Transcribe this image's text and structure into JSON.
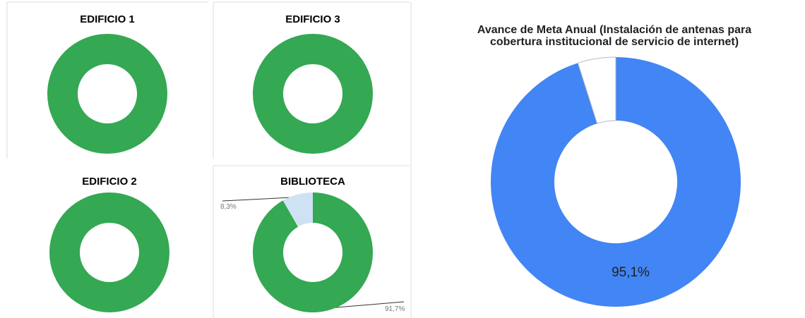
{
  "chart_data": [
    {
      "type": "donut",
      "title": "EDIFICIO 1",
      "values": [
        100
      ],
      "colors": [
        "#34a853"
      ]
    },
    {
      "type": "donut",
      "title": "EDIFICIO 3",
      "values": [
        100
      ],
      "colors": [
        "#34a853"
      ]
    },
    {
      "type": "donut",
      "title": "EDIFICIO 2",
      "values": [
        100
      ],
      "colors": [
        "#34a853"
      ]
    },
    {
      "type": "donut",
      "title": "BIBLIOTECA",
      "values": [
        91.7,
        8.3
      ],
      "value_labels": [
        "91,7%",
        "8,3%"
      ],
      "colors": [
        "#34a853",
        "#cfe2f3"
      ]
    },
    {
      "type": "donut",
      "title": [
        "Avance de Meta Anual (Instalación de antenas para",
        "cobertura institucional de servicio de internet)"
      ],
      "values": [
        95.1,
        4.9
      ],
      "value_labels": [
        "95,1%",
        null
      ],
      "colors": [
        "#4285f4",
        "#ffffff"
      ]
    }
  ]
}
